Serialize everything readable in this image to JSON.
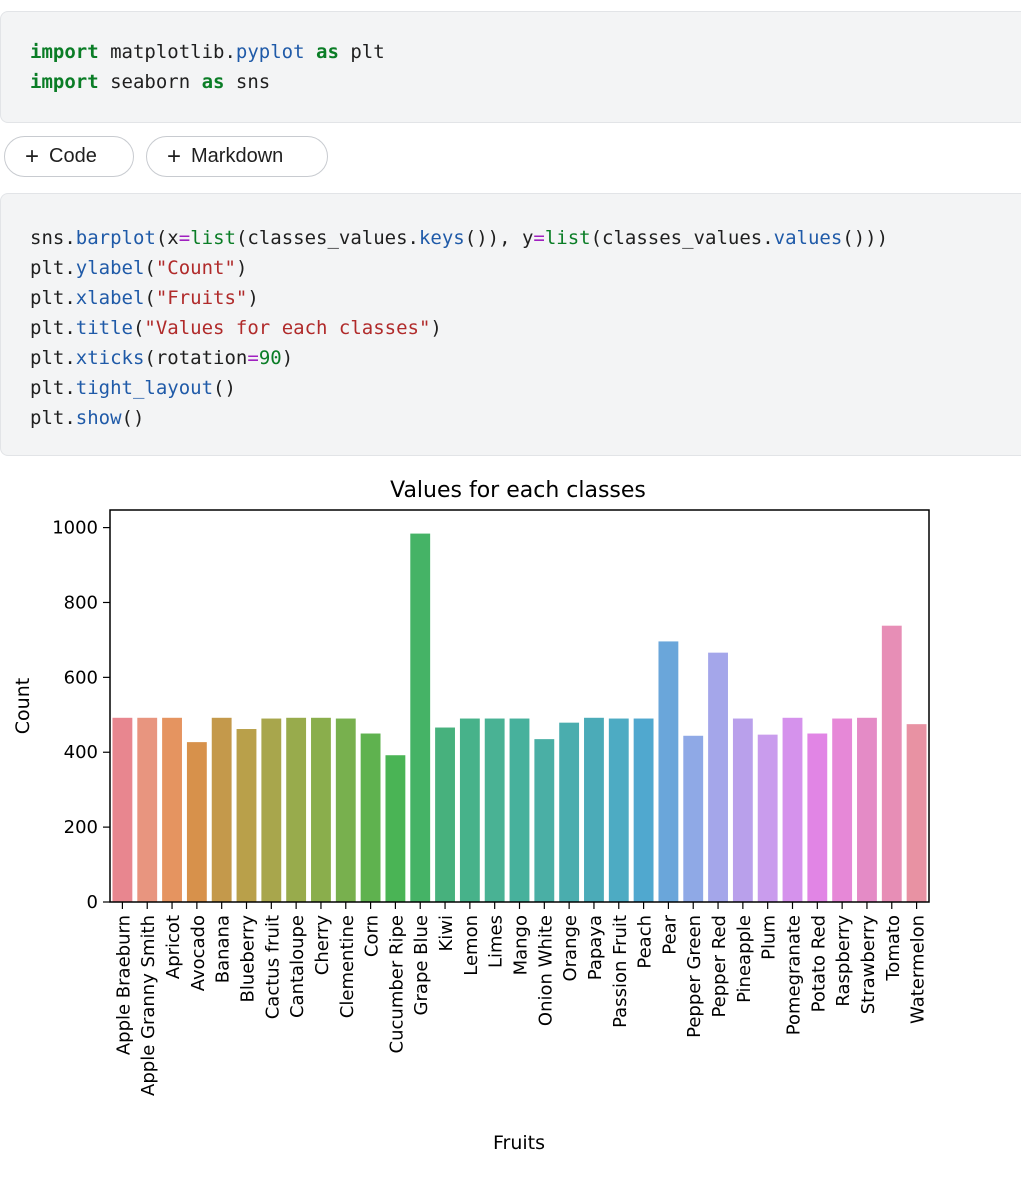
{
  "cell1": {
    "lines": [
      [
        {
          "t": "import",
          "c": "kw"
        },
        {
          "t": " matplotlib.",
          "c": ""
        },
        {
          "t": "pyplot",
          "c": "fn"
        },
        {
          "t": " ",
          "c": ""
        },
        {
          "t": "as",
          "c": "kw"
        },
        {
          "t": " plt",
          "c": ""
        }
      ],
      [
        {
          "t": "import",
          "c": "kw"
        },
        {
          "t": " seaborn ",
          "c": ""
        },
        {
          "t": "as",
          "c": "kw"
        },
        {
          "t": " sns",
          "c": ""
        }
      ]
    ]
  },
  "toolbar": {
    "code_label": "Code",
    "markdown_label": "Markdown"
  },
  "cell2": {
    "lines": [
      [
        {
          "t": "sns.",
          "c": ""
        },
        {
          "t": "barplot",
          "c": "fn"
        },
        {
          "t": "(x",
          "c": ""
        },
        {
          "t": "=",
          "c": "op"
        },
        {
          "t": "list",
          "c": "bi"
        },
        {
          "t": "(classes_values.",
          "c": ""
        },
        {
          "t": "keys",
          "c": "fn"
        },
        {
          "t": "()), y",
          "c": ""
        },
        {
          "t": "=",
          "c": "op"
        },
        {
          "t": "list",
          "c": "bi"
        },
        {
          "t": "(classes_values.",
          "c": ""
        },
        {
          "t": "values",
          "c": "fn"
        },
        {
          "t": "()))",
          "c": ""
        }
      ],
      [
        {
          "t": "plt.",
          "c": ""
        },
        {
          "t": "ylabel",
          "c": "fn"
        },
        {
          "t": "(",
          "c": ""
        },
        {
          "t": "\"Count\"",
          "c": "str"
        },
        {
          "t": ")",
          "c": ""
        }
      ],
      [
        {
          "t": "plt.",
          "c": ""
        },
        {
          "t": "xlabel",
          "c": "fn"
        },
        {
          "t": "(",
          "c": ""
        },
        {
          "t": "\"Fruits\"",
          "c": "str"
        },
        {
          "t": ")",
          "c": ""
        }
      ],
      [
        {
          "t": "plt.",
          "c": ""
        },
        {
          "t": "title",
          "c": "fn"
        },
        {
          "t": "(",
          "c": ""
        },
        {
          "t": "\"Values for each classes\"",
          "c": "str"
        },
        {
          "t": ")",
          "c": ""
        }
      ],
      [
        {
          "t": "plt.",
          "c": ""
        },
        {
          "t": "xticks",
          "c": "fn"
        },
        {
          "t": "(rotation",
          "c": ""
        },
        {
          "t": "=",
          "c": "op"
        },
        {
          "t": "90",
          "c": "num"
        },
        {
          "t": ")",
          "c": ""
        }
      ],
      [
        {
          "t": "plt.",
          "c": ""
        },
        {
          "t": "tight_layout",
          "c": "fn"
        },
        {
          "t": "()",
          "c": ""
        }
      ],
      [
        {
          "t": "plt.",
          "c": ""
        },
        {
          "t": "show",
          "c": "fn"
        },
        {
          "t": "()",
          "c": ""
        }
      ]
    ]
  },
  "chart_data": {
    "type": "bar",
    "title": "Values for each classes",
    "xlabel": "Fruits",
    "ylabel": "Count",
    "ylim": [
      0,
      1000
    ],
    "yticks": [
      0,
      200,
      400,
      600,
      800,
      1000
    ],
    "categories": [
      "Apple Braeburn",
      "Apple Granny Smith",
      "Apricot",
      "Avocado",
      "Banana",
      "Blueberry",
      "Cactus fruit",
      "Cantaloupe",
      "Cherry",
      "Clementine",
      "Corn",
      "Cucumber Ripe",
      "Grape Blue",
      "Kiwi",
      "Lemon",
      "Limes",
      "Mango",
      "Onion White",
      "Orange",
      "Papaya",
      "Passion Fruit",
      "Peach",
      "Pear",
      "Pepper Green",
      "Pepper Red",
      "Pineapple",
      "Plum",
      "Pomegranate",
      "Potato Red",
      "Raspberry",
      "Strawberry",
      "Tomato",
      "Watermelon"
    ],
    "values": [
      492,
      492,
      492,
      427,
      492,
      462,
      490,
      492,
      492,
      490,
      450,
      392,
      984,
      466,
      490,
      490,
      490,
      435,
      479,
      492,
      490,
      490,
      696,
      444,
      666,
      490,
      447,
      492,
      450,
      490,
      492,
      738,
      475
    ],
    "colors": [
      "#e8868f",
      "#e8957f",
      "#e59460",
      "#d7914b",
      "#c4994b",
      "#b9a04a",
      "#a8a64c",
      "#98ab4c",
      "#8aae4c",
      "#78b04e",
      "#5fb24f",
      "#4ab455",
      "#45b366",
      "#47b17d",
      "#47b28a",
      "#49b294",
      "#47b19c",
      "#4aafa5",
      "#4aadae",
      "#4babb8",
      "#4dabc3",
      "#50a8cf",
      "#6aa6da",
      "#8fa9e6",
      "#a4a6ea",
      "#b9a0eb",
      "#c99ced",
      "#d592ec",
      "#e185e5",
      "#e688d7",
      "#e48bc6",
      "#e78eb6",
      "#e892a3"
    ],
    "grid": false
  }
}
